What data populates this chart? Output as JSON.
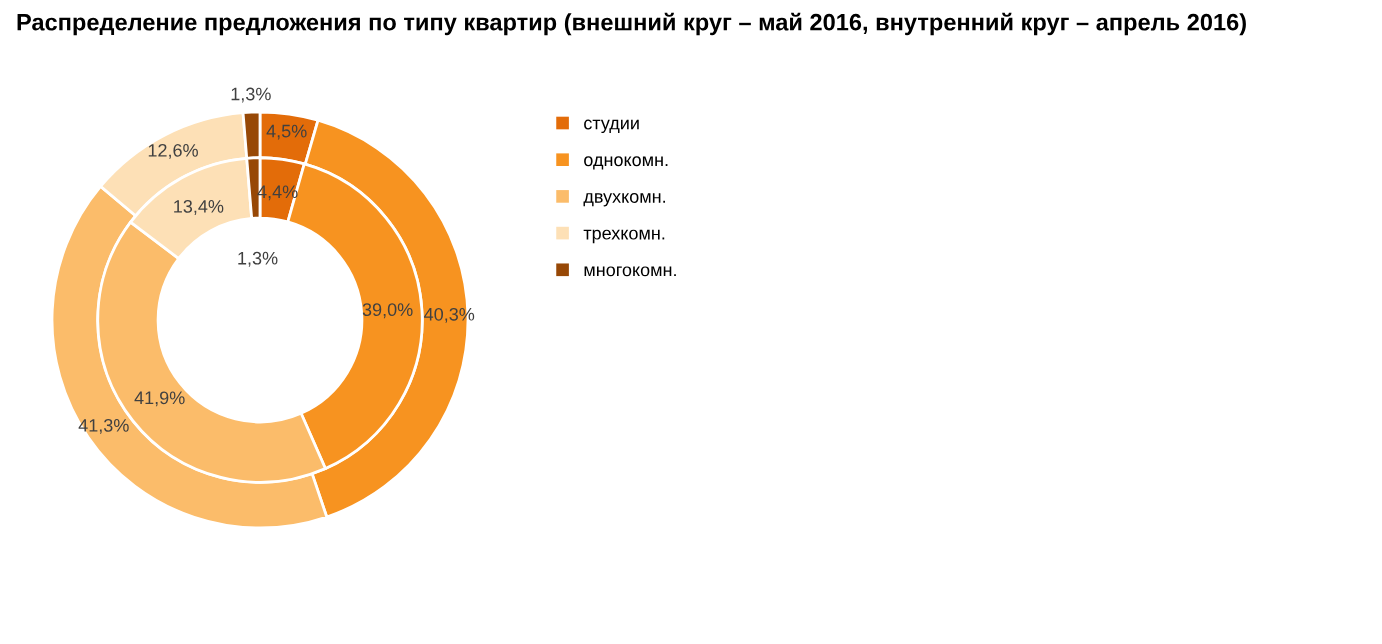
{
  "chart_data": {
    "type": "donut",
    "title": "Распределение предложения по типу квартир (внешний круг – май 2016, внутренний круг – апрель 2016)",
    "categories": [
      "студии",
      "однокомн.",
      "двухкомн.",
      "трехкомн.",
      "многокомн."
    ],
    "colors": [
      "#e36c09",
      "#f79320",
      "#fbbc6a",
      "#fde0b6",
      "#974806"
    ],
    "series": [
      {
        "values": [
          4.5,
          40.3,
          41.3,
          12.6,
          1.3
        ],
        "value_labels": [
          "4,5%",
          "40,3%",
          "41,3%",
          "12,6%",
          "1,3%"
        ]
      },
      {
        "values": [
          4.4,
          39.0,
          41.9,
          13.4,
          1.3
        ],
        "value_labels": [
          "4,4%",
          "39,0%",
          "41,9%",
          "13,4%",
          "1,3%"
        ]
      }
    ],
    "legend": "right"
  }
}
